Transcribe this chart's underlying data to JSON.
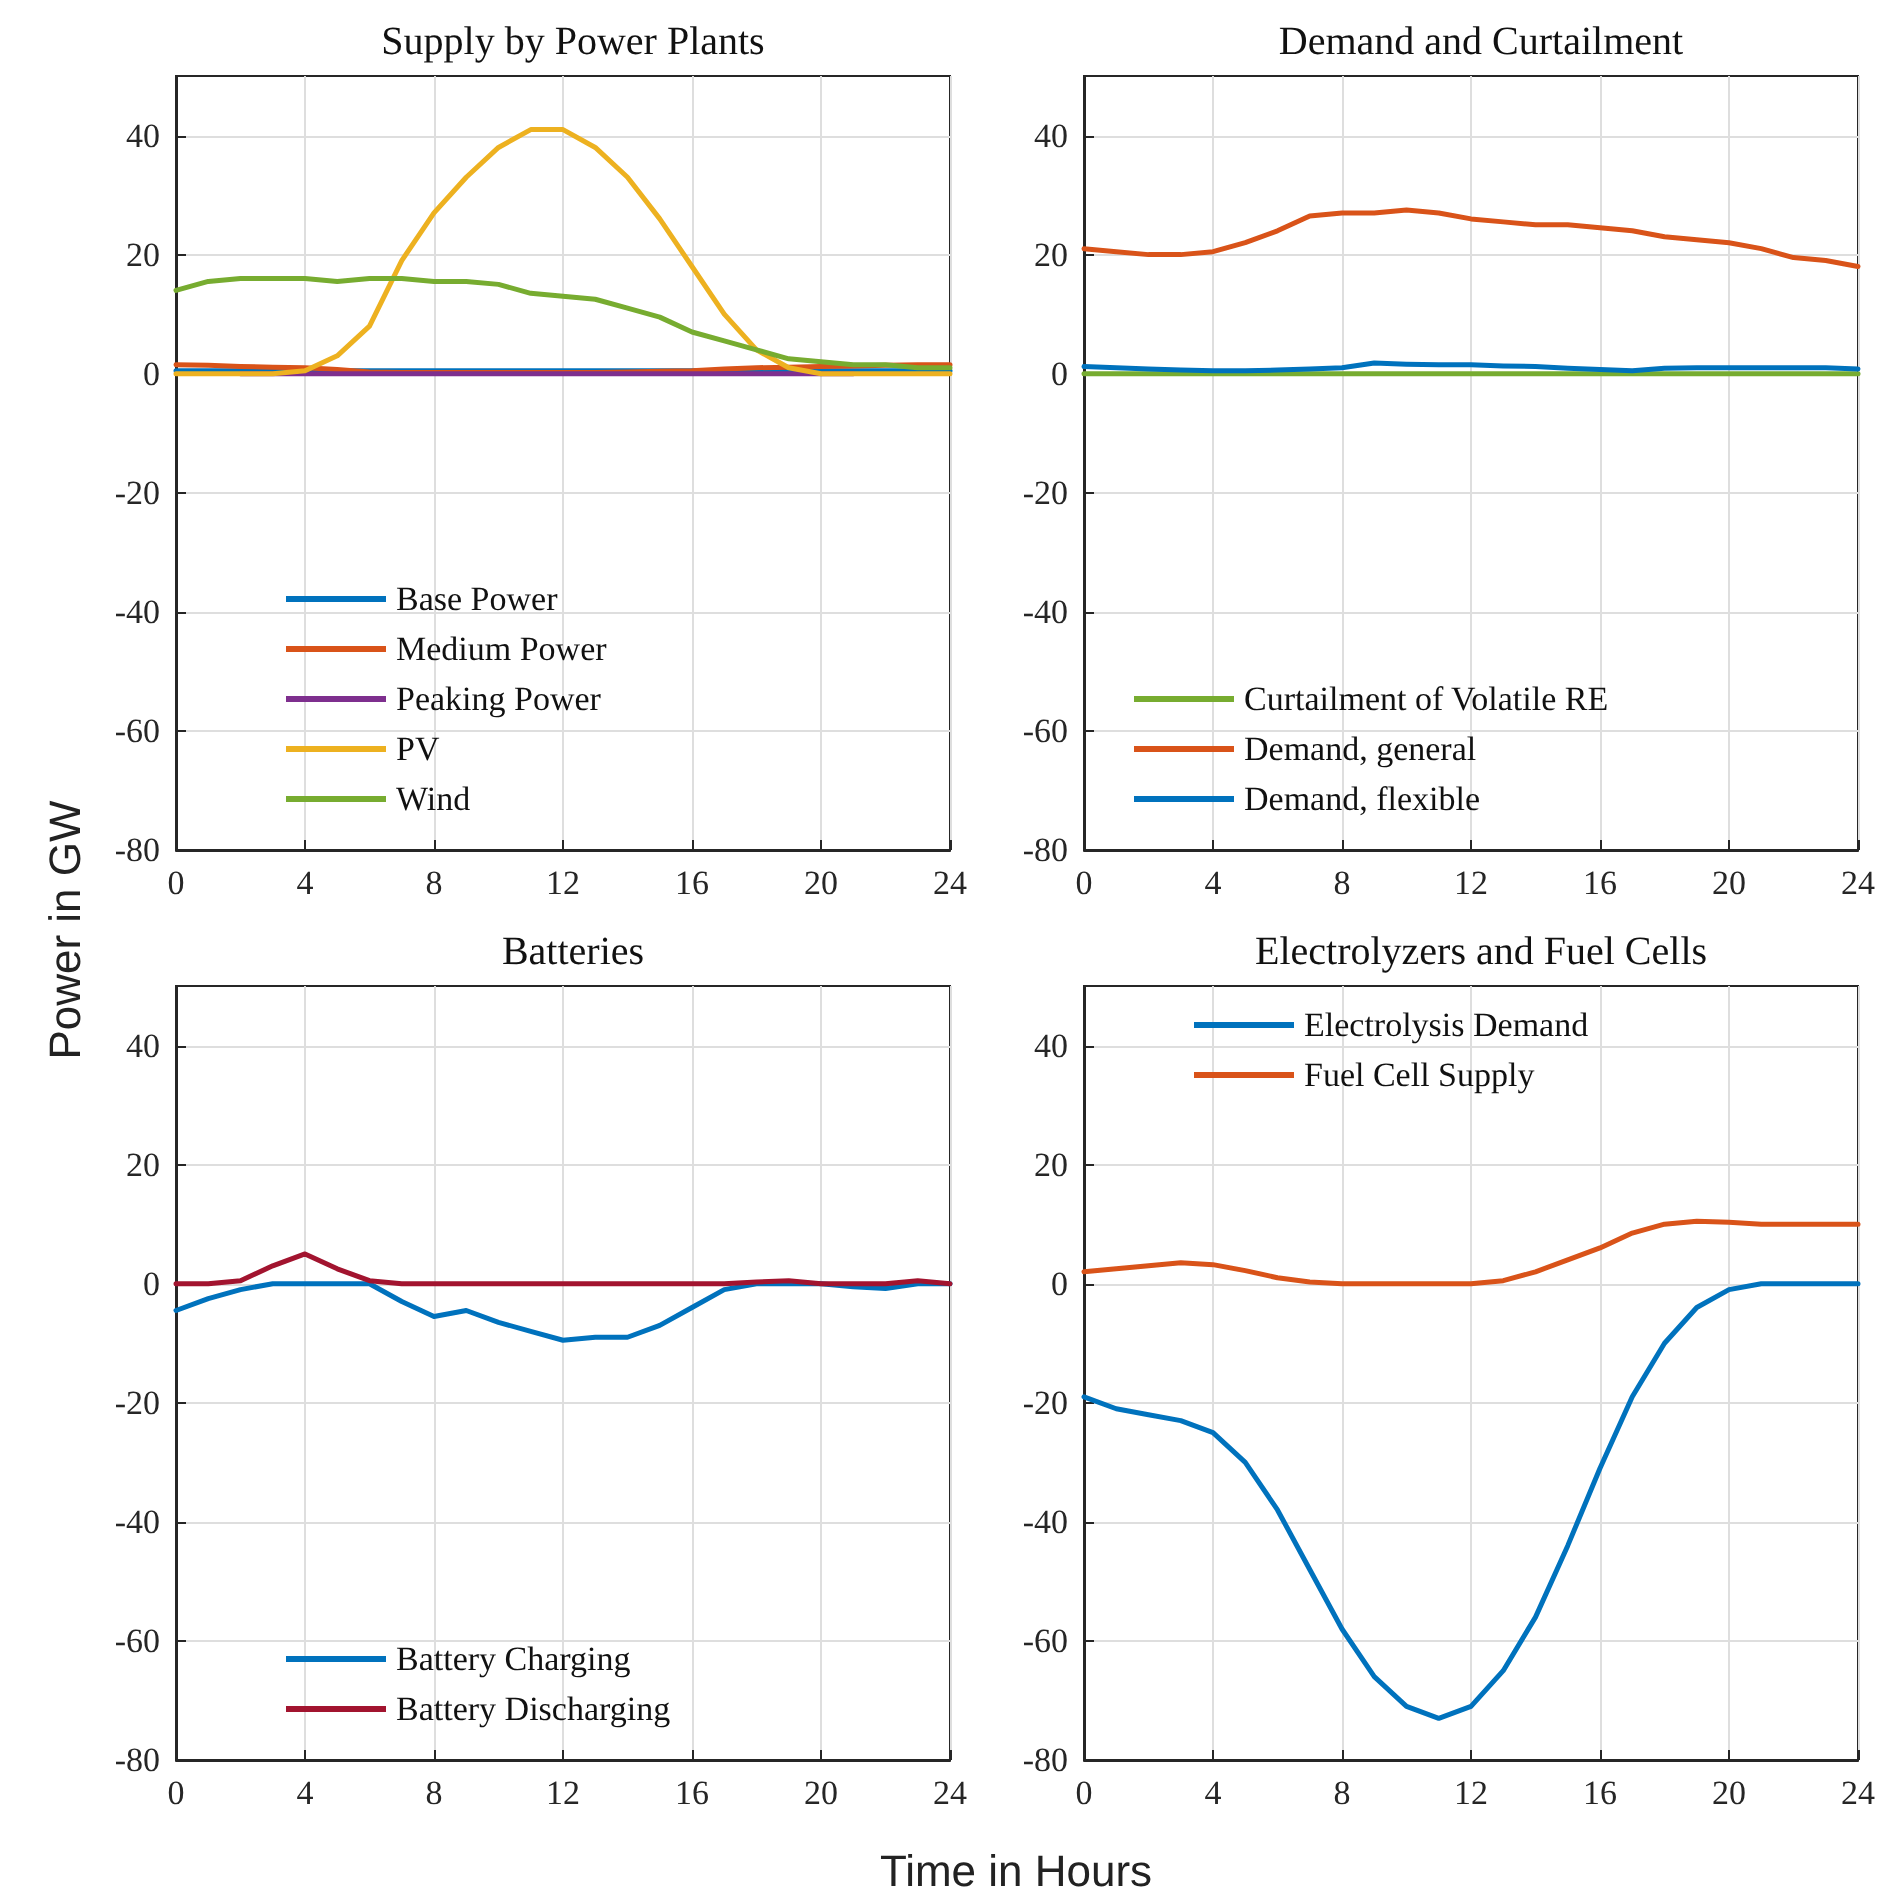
{
  "chart_data": [
    {
      "type": "line",
      "title": "Supply by Power Plants",
      "ylabel": "Power in GW",
      "x": [
        0,
        1,
        2,
        3,
        4,
        5,
        6,
        7,
        8,
        9,
        10,
        11,
        12,
        13,
        14,
        15,
        16,
        17,
        18,
        19,
        20,
        21,
        22,
        23,
        24
      ],
      "series": [
        {
          "name": "Base Power",
          "color": "#0072bd",
          "values": [
            0.5,
            0.5,
            0.5,
            0.5,
            0.5,
            0.5,
            0.5,
            0.5,
            0.5,
            0.5,
            0.5,
            0.5,
            0.5,
            0.5,
            0.5,
            0.5,
            0.5,
            0.5,
            0.5,
            0.5,
            0.5,
            0.5,
            0.5,
            0.5,
            0.5
          ]
        },
        {
          "name": "Medium Power",
          "color": "#d95319",
          "values": [
            1.5,
            1.4,
            1.2,
            1.1,
            1,
            0.7,
            0.3,
            0.2,
            0.2,
            0.2,
            0.2,
            0.2,
            0.2,
            0.2,
            0.3,
            0.4,
            0.5,
            0.8,
            1,
            1.1,
            1.2,
            1.3,
            1.4,
            1.5,
            1.5
          ]
        },
        {
          "name": "Peaking Power",
          "color": "#7e2f8e",
          "values": [
            null,
            null,
            0,
            0,
            0,
            0,
            0,
            0,
            0,
            0,
            0,
            0,
            0,
            0,
            0,
            0,
            0,
            0,
            0,
            0,
            0,
            0,
            null,
            null,
            null
          ]
        },
        {
          "name": "PV",
          "color": "#edb120",
          "values": [
            0,
            0,
            0,
            0,
            0.5,
            3,
            8,
            19,
            27,
            33,
            38,
            41,
            41,
            38,
            33,
            26,
            18,
            10,
            4,
            1,
            0,
            0,
            0,
            0,
            0
          ]
        },
        {
          "name": "Wind",
          "color": "#77ac30",
          "values": [
            14,
            15.5,
            16,
            16,
            16,
            15.5,
            16,
            16,
            15.5,
            15.5,
            15,
            13.5,
            13,
            12.5,
            11,
            9.5,
            7,
            5.5,
            4,
            2.5,
            2,
            1.5,
            1.5,
            1,
            1
          ]
        }
      ],
      "xlim": [
        0,
        24
      ],
      "xticks": [
        0,
        4,
        8,
        12,
        16,
        20,
        24
      ],
      "ylim": [
        -80,
        50
      ],
      "yticks": [
        -80,
        -60,
        -40,
        -20,
        0,
        20,
        40
      ],
      "grid": true,
      "legend": "bottom",
      "marker": "none",
      "line_style": "solid"
    },
    {
      "type": "line",
      "title": "Demand and Curtailment",
      "x": [
        0,
        1,
        2,
        3,
        4,
        5,
        6,
        7,
        8,
        9,
        10,
        11,
        12,
        13,
        14,
        15,
        16,
        17,
        18,
        19,
        20,
        21,
        22,
        23,
        24
      ],
      "series": [
        {
          "name": "Curtailment of Volatile RE",
          "color": "#77ac30",
          "values": [
            0,
            0,
            0,
            0,
            0,
            0,
            0,
            0,
            0,
            0,
            0,
            0,
            0,
            0,
            0,
            0,
            0,
            0,
            0,
            0,
            0,
            0,
            0,
            0,
            0
          ]
        },
        {
          "name": "Demand, general",
          "color": "#d95319",
          "values": [
            21,
            20.5,
            20,
            20,
            20.5,
            22,
            24,
            26.5,
            27,
            27,
            27.5,
            27,
            26,
            25.5,
            25,
            25,
            24.5,
            24,
            23,
            22.5,
            22,
            21,
            19.5,
            19,
            18
          ]
        },
        {
          "name": "Demand, flexible",
          "color": "#0072bd",
          "values": [
            1.2,
            1,
            0.8,
            0.6,
            0.5,
            0.5,
            0.6,
            0.8,
            1,
            1.8,
            1.6,
            1.5,
            1.5,
            1.3,
            1.2,
            0.9,
            0.7,
            0.5,
            0.9,
            1,
            1,
            1,
            1,
            1,
            0.8
          ]
        }
      ],
      "xlim": [
        0,
        24
      ],
      "xticks": [
        0,
        4,
        8,
        12,
        16,
        20,
        24
      ],
      "ylim": [
        -80,
        50
      ],
      "yticks": [
        -80,
        -60,
        -40,
        -20,
        0,
        20,
        40
      ],
      "grid": true,
      "legend": "bottom",
      "marker": "none",
      "line_style": "solid"
    },
    {
      "type": "line",
      "title": "Batteries",
      "xlabel": "Time in Hours",
      "x": [
        0,
        1,
        2,
        3,
        4,
        5,
        6,
        7,
        8,
        9,
        10,
        11,
        12,
        13,
        14,
        15,
        16,
        17,
        18,
        19,
        20,
        21,
        22,
        23,
        24
      ],
      "series": [
        {
          "name": "Battery Charging",
          "color": "#0072bd",
          "values": [
            -4.5,
            -2.5,
            -1,
            0,
            0,
            0,
            0,
            -3,
            -5.5,
            -4.5,
            -6.5,
            -8,
            -9.5,
            -9,
            -9,
            -7,
            -4,
            -1,
            0,
            0,
            0,
            -0.5,
            -0.8,
            0,
            0
          ]
        },
        {
          "name": "Battery Discharging",
          "color": "#a2142f",
          "values": [
            0,
            0,
            0.5,
            3,
            5,
            2.5,
            0.5,
            0,
            0,
            0,
            0,
            0,
            0,
            0,
            0,
            0,
            0,
            0,
            0.3,
            0.5,
            0,
            0,
            0,
            0.5,
            0
          ]
        }
      ],
      "xlim": [
        0,
        24
      ],
      "xticks": [
        0,
        4,
        8,
        12,
        16,
        20,
        24
      ],
      "ylim": [
        -80,
        50
      ],
      "yticks": [
        -80,
        -60,
        -40,
        -20,
        0,
        20,
        40
      ],
      "grid": true,
      "legend": "bottom",
      "marker": "none",
      "line_style": "solid"
    },
    {
      "type": "line",
      "title": "Electrolyzers and Fuel Cells",
      "x": [
        0,
        1,
        2,
        3,
        4,
        5,
        6,
        7,
        8,
        9,
        10,
        11,
        12,
        13,
        14,
        15,
        16,
        17,
        18,
        19,
        20,
        21,
        22,
        23,
        24
      ],
      "series": [
        {
          "name": "Electrolysis Demand",
          "color": "#0072bd",
          "values": [
            -19,
            -21,
            -22,
            -23,
            -25,
            -30,
            -38,
            -48,
            -58,
            -66,
            -71,
            -73,
            -71,
            -65,
            -56,
            -44,
            -31,
            -19,
            -10,
            -4,
            -1,
            0,
            0,
            0,
            0
          ]
        },
        {
          "name": "Fuel Cell Supply",
          "color": "#d95319",
          "values": [
            2,
            2.5,
            3,
            3.5,
            3.2,
            2.2,
            1,
            0.3,
            0,
            0,
            0,
            0,
            0,
            0.5,
            2,
            4,
            6,
            8.5,
            10,
            10.5,
            10.3,
            10,
            10,
            10,
            10
          ]
        }
      ],
      "xlim": [
        0,
        24
      ],
      "xticks": [
        0,
        4,
        8,
        12,
        16,
        20,
        24
      ],
      "ylim": [
        -80,
        50
      ],
      "yticks": [
        -80,
        -60,
        -40,
        -20,
        0,
        20,
        40
      ],
      "grid": true,
      "legend": "top",
      "marker": "none",
      "line_style": "solid"
    }
  ]
}
